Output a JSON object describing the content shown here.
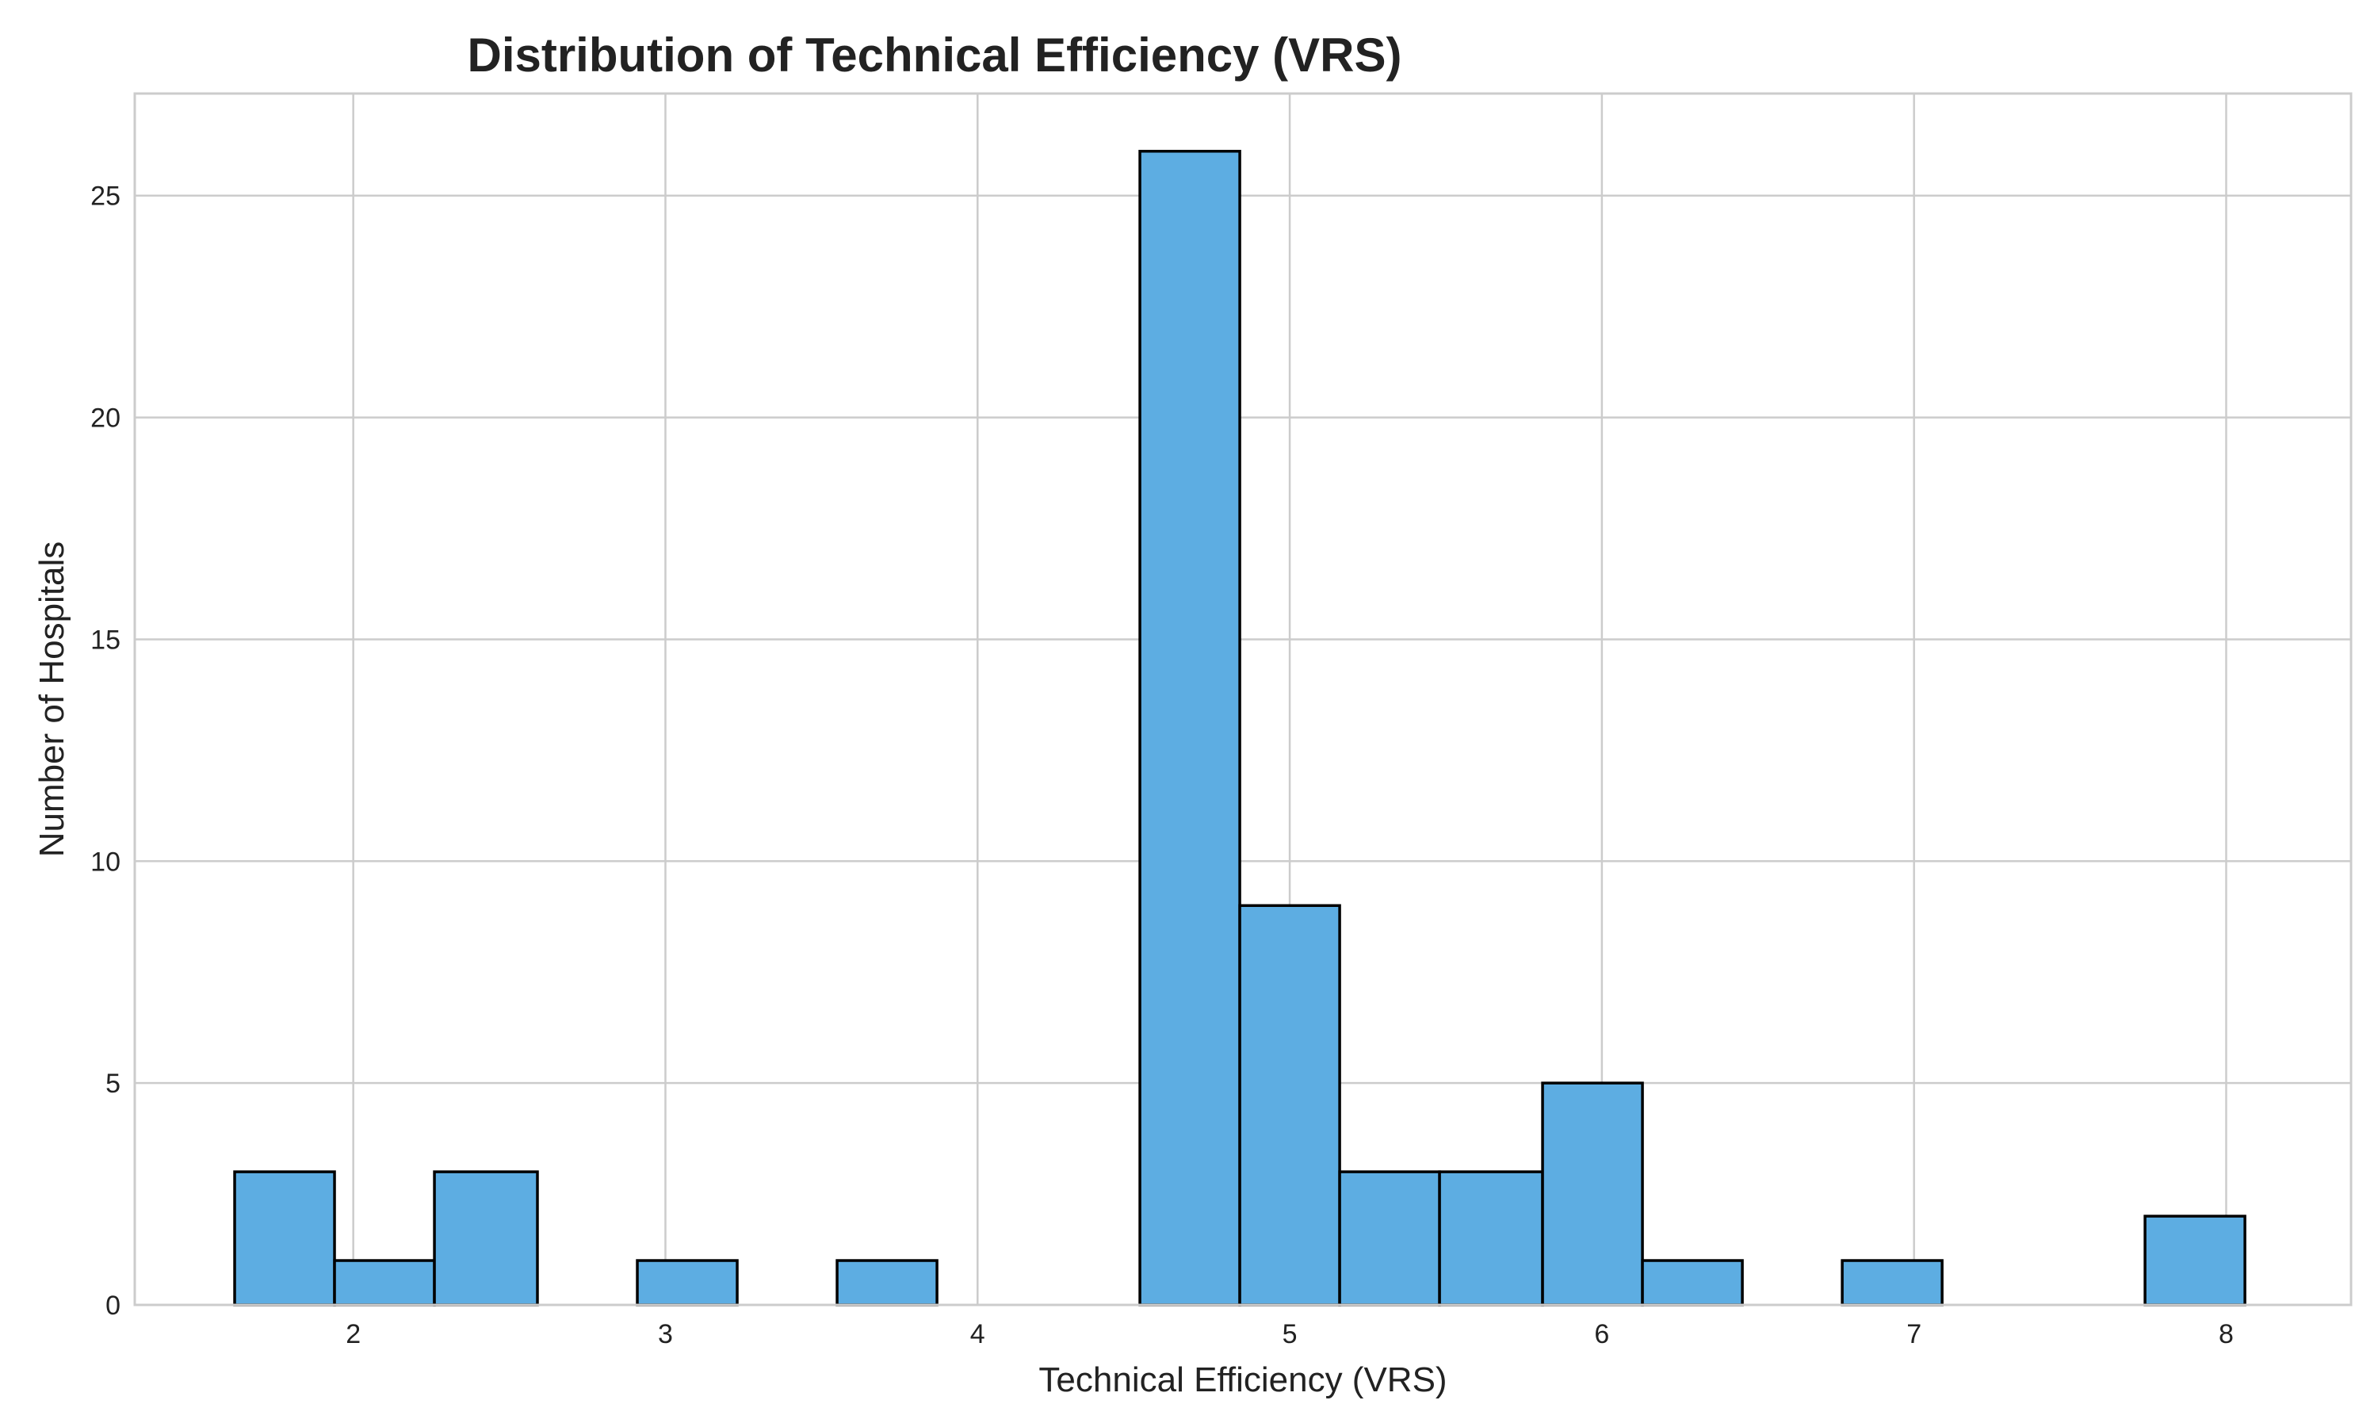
{
  "chart_data": {
    "type": "bar",
    "title": "Distribution of Technical Efficiency (VRS)",
    "xlabel": "Technical Efficiency (VRS)",
    "ylabel": "Number of Hospitals",
    "xlim": [
      1.3,
      8.4
    ],
    "ylim": [
      0,
      27.3
    ],
    "xticks": [
      2,
      3,
      4,
      5,
      6,
      7,
      8
    ],
    "yticks": [
      0,
      5,
      10,
      15,
      20,
      25
    ],
    "grid": true,
    "bar_color": "#5dade2",
    "edge_color": "#000000",
    "bin_edges": [
      1.62,
      1.94,
      2.26,
      2.59,
      2.91,
      3.23,
      3.55,
      3.87,
      4.2,
      4.52,
      4.84,
      5.16,
      5.48,
      5.81,
      6.13,
      6.45,
      6.77,
      7.09,
      7.42,
      7.74,
      8.06
    ],
    "values": [
      3,
      1,
      3,
      0,
      1,
      0,
      1,
      0,
      0,
      26,
      9,
      3,
      3,
      5,
      1,
      0,
      1,
      0,
      0,
      2
    ]
  }
}
